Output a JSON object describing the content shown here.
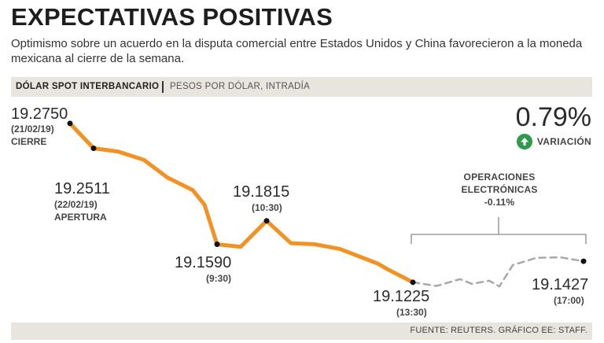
{
  "header": {
    "title": "EXPECTATIVAS POSITIVAS",
    "subtitle": "Optimismo sobre un acuerdo en la disputa comercial entre Estados Unidos y China favorecieron a la moneda mexicana al cierre de la semana."
  },
  "chart_header": {
    "title": "DÓLAR SPOT INTERBANCARIO",
    "subtitle": "PESOS POR DÓLAR, INTRADÍA"
  },
  "variation": {
    "value": "0.79%",
    "label": "VARIACIÓN",
    "color": "#2e9a4a"
  },
  "electronic_ops": {
    "line1": "OPERACIONES",
    "line2": "ELECTRÓNICAS",
    "line3": "-0.11%"
  },
  "footer": {
    "source": "FUENTE: REUTERS. GRÁFICO EE: STAFF."
  },
  "chart_data": {
    "type": "line",
    "title": "DÓLAR SPOT INTERBANCARIO",
    "ylabel": "PESOS POR DÓLAR, INTRADÍA",
    "ylim": [
      19.105,
      19.29
    ],
    "colors": {
      "main": "#f29222",
      "electronic": "#a8a8a8"
    },
    "series": [
      {
        "name": "Intradía",
        "style": "solid",
        "values": [
          19.275,
          19.2511,
          19.248,
          19.24,
          19.223,
          19.211,
          19.197,
          19.159,
          19.1565,
          19.1815,
          19.16,
          19.159,
          19.1545,
          19.1455,
          19.1405,
          19.1345,
          19.1225
        ]
      },
      {
        "name": "Operaciones electrónicas",
        "style": "dashed",
        "values": [
          19.1225,
          19.119,
          19.1255,
          19.121,
          19.124,
          19.1185,
          19.139,
          19.146,
          19.1465,
          19.1427
        ]
      }
    ],
    "annotations": [
      {
        "value": "19.2750",
        "sub": [
          "(21/02/19)",
          "CIERRE"
        ]
      },
      {
        "value": "19.2511",
        "sub": [
          "(22/02/19)",
          "APERTURA"
        ]
      },
      {
        "value": "19.1590",
        "sub": [
          "(9:30)"
        ]
      },
      {
        "value": "19.1815",
        "sub": [
          "(10:30)"
        ]
      },
      {
        "value": "19.1225",
        "sub": [
          "(13:30)"
        ]
      },
      {
        "value": "19.1427",
        "sub": [
          "(17:00)"
        ]
      }
    ]
  }
}
